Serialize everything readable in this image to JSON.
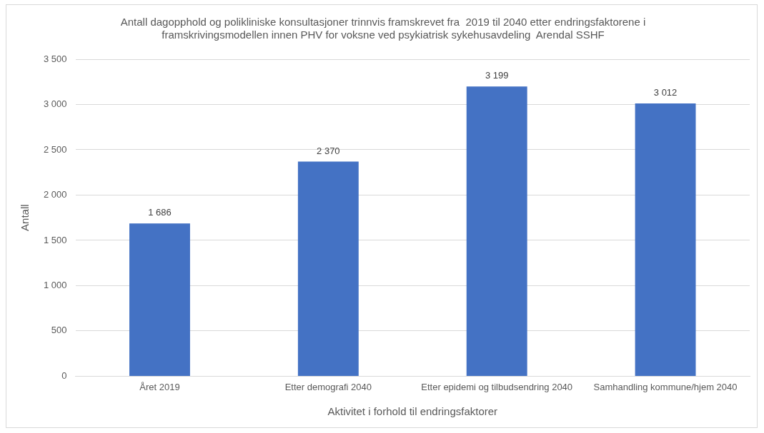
{
  "chart_data": {
    "type": "bar",
    "title": "Antall dagopphold og polikliniske konsultasjoner trinnvis framskrevet fra  2019 til 2040 etter endringsfaktorene i framskrivingsmodellen innen PHV for voksne ved psykiatrisk sykehusavdeling  Arendal SSHF",
    "xlabel": "Aktivitet i forhold til endringsfaktorer",
    "ylabel": "Antall",
    "categories": [
      "Året 2019",
      "Etter demografi 2040",
      "Etter epidemi og tilbudsendring 2040",
      "Samhandling kommune/hjem 2040"
    ],
    "values": [
      1686,
      2370,
      3199,
      3012
    ],
    "color": "#4472c4",
    "value_labels": [
      "1 686",
      "2 370",
      "3 199",
      "3 012"
    ],
    "ylim": [
      0,
      3500
    ],
    "yticks": [
      {
        "value": 0,
        "label": "0"
      },
      {
        "value": 500,
        "label": "500"
      },
      {
        "value": 1000,
        "label": "1 000"
      },
      {
        "value": 1500,
        "label": "1 500"
      },
      {
        "value": 2000,
        "label": "2 000"
      },
      {
        "value": 2500,
        "label": "2 500"
      },
      {
        "value": 3000,
        "label": "3 000"
      },
      {
        "value": 3500,
        "label": "3 500"
      }
    ],
    "grid": "y",
    "legend": false
  }
}
